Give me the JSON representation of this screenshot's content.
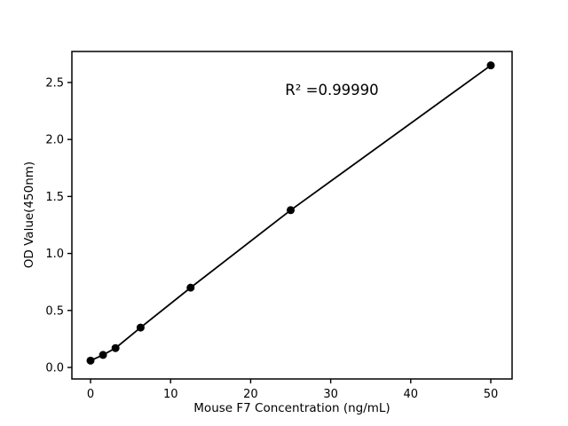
{
  "chart_data": {
    "type": "scatter",
    "title": "",
    "xlabel": "Mouse F7 Concentration (ng/mL)",
    "ylabel": "OD Value(450nm)",
    "annotation": "R² =0.99990",
    "x": [
      0,
      1.56,
      3.12,
      6.25,
      12.5,
      25,
      50
    ],
    "y": [
      0.06,
      0.11,
      0.17,
      0.35,
      0.7,
      1.38,
      2.65
    ],
    "xticks": [
      0,
      10,
      20,
      30,
      40,
      50
    ],
    "yticks": [
      "0.0",
      "0.5",
      "1.0",
      "1.5",
      "2.0",
      "2.5"
    ],
    "xlim": [
      -2.33,
      52.66
    ],
    "ylim": [
      -0.101,
      2.772
    ],
    "grid": false,
    "legend": "none",
    "marker_color": "#000000",
    "line_color": "#000000",
    "axis_color": "#000000",
    "background": "#ffffff"
  }
}
